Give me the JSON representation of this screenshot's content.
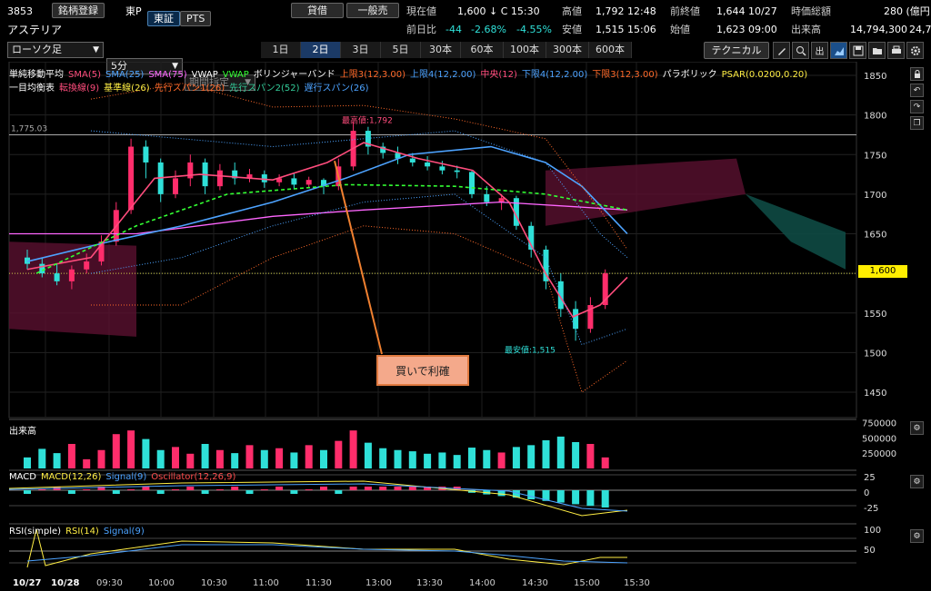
{
  "header": {
    "code": "3853",
    "register_btn": "銘柄登録",
    "market": "東P",
    "tab_tosho": "東証",
    "tab_pts": "PTS",
    "company": "アステリア",
    "lend_btn": "貸借",
    "general_btn": "一般売",
    "quote": {
      "current_label": "現在値",
      "current": "1,600 ↓ C 15:30",
      "high_label": "高値",
      "high": "1,792 12:48",
      "prev_close_label": "前終値",
      "prev_close": "1,644 10/27",
      "mktcap_label": "時価総額",
      "mktcap": "280 (億円",
      "change_label": "前日比",
      "change": "-44",
      "change_pct": "-2.68%",
      "change_pct2": "-4.55%",
      "low_label": "安値",
      "low": "1,515 15:06",
      "open_label": "始値",
      "open": "1,623 09:00",
      "volume_label": "出来高",
      "volume": "14,794,300",
      "extra": "24,7"
    }
  },
  "toolbar": {
    "chart_type": "ローソク足",
    "interval": "5分",
    "period": "期間指定",
    "timeframes": [
      "1日",
      "2日",
      "3日",
      "5日",
      "30本",
      "60本",
      "100本",
      "300本",
      "600本"
    ],
    "active_timeframe": 1,
    "technical_btn": "テクニカル"
  },
  "legends": {
    "row1": [
      {
        "t": "単純移動平均",
        "c": "#ffffff"
      },
      {
        "t": "SMA(5)",
        "c": "#ff4d7d"
      },
      {
        "t": "SMA(25)",
        "c": "#4da3ff"
      },
      {
        "t": "SMA(75)",
        "c": "#ff66ff"
      },
      {
        "t": "VWAP",
        "c": "#ffffff"
      },
      {
        "t": "VWAP",
        "c": "#33ff33"
      },
      {
        "t": "ボリンジャーバンド",
        "c": "#ffffff"
      },
      {
        "t": "上限3(12,3.00)",
        "c": "#ff6a2a"
      },
      {
        "t": "上限4(12,2.00)",
        "c": "#4da3ff"
      },
      {
        "t": "中央(12)",
        "c": "#ff4d7d"
      },
      {
        "t": "下限4(12,2.00)",
        "c": "#4da3ff"
      },
      {
        "t": "下限3(12,3.00)",
        "c": "#ff6a2a"
      },
      {
        "t": "パラボリック",
        "c": "#ffffff"
      },
      {
        "t": "PSAR(0.0200,0.20)",
        "c": "#ffee44"
      }
    ],
    "row2": [
      {
        "t": "一目均衡表",
        "c": "#ffffff"
      },
      {
        "t": "転換線(9)",
        "c": "#ff4d7d"
      },
      {
        "t": "基準線(26)",
        "c": "#ffee44"
      },
      {
        "t": "先行スパン1(26)",
        "c": "#ff6a2a"
      },
      {
        "t": "先行スパン2(52)",
        "c": "#33cc99"
      },
      {
        "t": "遅行スパン(26)",
        "c": "#4da3ff"
      }
    ]
  },
  "annotations": {
    "hline_label": "1,775.03",
    "high_marker": "最高値:1,792",
    "low_marker": "最安値:1,515",
    "callout": "買いで利確",
    "price_tag": "1,600"
  },
  "price_axis": [
    "1850",
    "1800",
    "1750",
    "1700",
    "1650",
    "1600",
    "1550",
    "1500",
    "1450"
  ],
  "volume_panel": {
    "title": "出来高",
    "ticks": [
      "750000",
      "500000",
      "250000"
    ]
  },
  "macd_panel": {
    "legend": [
      {
        "t": "MACD",
        "c": "#ffffff"
      },
      {
        "t": "MACD(12,26)",
        "c": "#ffee44"
      },
      {
        "t": "Signal(9)",
        "c": "#4da3ff"
      },
      {
        "t": "Oscillator(12,26,9)",
        "c": "#ff4d4d"
      }
    ],
    "ticks": [
      "25",
      "0",
      "-25"
    ]
  },
  "rsi_panel": {
    "legend": [
      {
        "t": "RSI(simple)",
        "c": "#ffffff"
      },
      {
        "t": "RSI(14)",
        "c": "#ffee44"
      },
      {
        "t": "Signal(9)",
        "c": "#4da3ff"
      }
    ],
    "ticks": [
      "100",
      "50"
    ]
  },
  "time_axis": [
    "10/27",
    "10/28",
    "09:30",
    "10:00",
    "10:30",
    "11:00",
    "11:30",
    "13:00",
    "13:30",
    "14:00",
    "14:30",
    "15:00",
    "15:30"
  ],
  "colors": {
    "up": "#ff2d6b",
    "down": "#2fe0d8",
    "accent": "#1b3a66"
  }
}
